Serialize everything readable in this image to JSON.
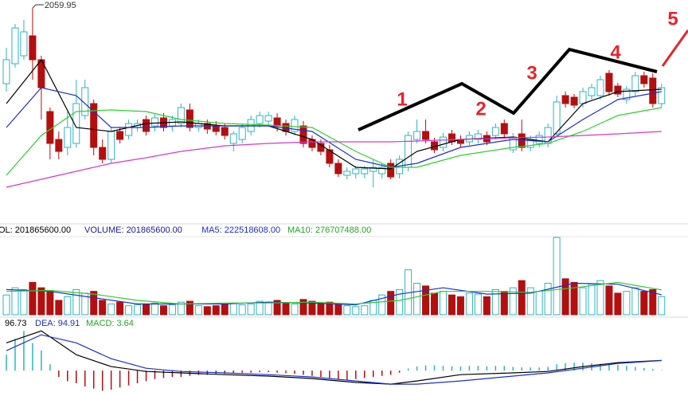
{
  "chart_data": {
    "type": "candlestick",
    "up_color": "#2fb3c4",
    "down_color": "#b40f0f",
    "ylim": [
      1790,
      2070
    ],
    "candles": [
      [
        1965,
        2010,
        1955,
        1995
      ],
      [
        1990,
        2040,
        1985,
        2035
      ],
      [
        2000,
        2045,
        1995,
        2030
      ],
      [
        2025,
        2059.95,
        1970,
        1995
      ],
      [
        1995,
        2000,
        1920,
        1960
      ],
      [
        1930,
        1935,
        1870,
        1890
      ],
      [
        1895,
        1905,
        1870,
        1880
      ],
      [
        1885,
        1930,
        1875,
        1910
      ],
      [
        1890,
        1970,
        1885,
        1940
      ],
      [
        1925,
        1970,
        1920,
        1960
      ],
      [
        1940,
        1945,
        1875,
        1885
      ],
      [
        1885,
        1895,
        1865,
        1870
      ],
      [
        1870,
        1910,
        1865,
        1905
      ],
      [
        1905,
        1910,
        1890,
        1895
      ],
      [
        1900,
        1920,
        1895,
        1915
      ],
      [
        1910,
        1920,
        1905,
        1915
      ],
      [
        1920,
        1925,
        1900,
        1905
      ],
      [
        1912,
        1928,
        1905,
        1922
      ],
      [
        1922,
        1928,
        1905,
        1910
      ],
      [
        1912,
        1925,
        1905,
        1920
      ],
      [
        1915,
        1940,
        1910,
        1935
      ],
      [
        1932,
        1940,
        1905,
        1910
      ],
      [
        1910,
        1920,
        1905,
        1915
      ],
      [
        1915,
        1920,
        1902,
        1908
      ],
      [
        1912,
        1918,
        1900,
        1905
      ],
      [
        1910,
        1915,
        1895,
        1900
      ],
      [
        1890,
        1905,
        1880,
        1902
      ],
      [
        1895,
        1915,
        1890,
        1910
      ],
      [
        1905,
        1925,
        1900,
        1920
      ],
      [
        1915,
        1930,
        1910,
        1925
      ],
      [
        1918,
        1930,
        1912,
        1925
      ],
      [
        1922,
        1928,
        1905,
        1912
      ],
      [
        1915,
        1920,
        1900,
        1905
      ],
      [
        1905,
        1925,
        1900,
        1920
      ],
      [
        1912,
        1918,
        1885,
        1890
      ],
      [
        1895,
        1900,
        1880,
        1885
      ],
      [
        1890,
        1895,
        1875,
        1880
      ],
      [
        1882,
        1888,
        1860,
        1865
      ],
      [
        1865,
        1870,
        1848,
        1852
      ],
      [
        1850,
        1860,
        1845,
        1855
      ],
      [
        1852,
        1862,
        1846,
        1858
      ],
      [
        1852,
        1862,
        1846,
        1858
      ],
      [
        1855,
        1870,
        1835,
        1860
      ],
      [
        1852,
        1865,
        1846,
        1860
      ],
      [
        1865,
        1870,
        1845,
        1848
      ],
      [
        1852,
        1875,
        1846,
        1870
      ],
      [
        1860,
        1905,
        1855,
        1900
      ],
      [
        1895,
        1920,
        1890,
        1905
      ],
      [
        1905,
        1920,
        1890,
        1895
      ],
      [
        1892,
        1897,
        1878,
        1882
      ],
      [
        1885,
        1903,
        1880,
        1898
      ],
      [
        1902,
        1907,
        1888,
        1892
      ],
      [
        1895,
        1900,
        1885,
        1890
      ],
      [
        1892,
        1905,
        1888,
        1900
      ],
      [
        1895,
        1907,
        1890,
        1902
      ],
      [
        1900,
        1905,
        1888,
        1892
      ],
      [
        1900,
        1915,
        1895,
        1910
      ],
      [
        1915,
        1920,
        1898,
        1902
      ],
      [
        1882,
        1903,
        1878,
        1898
      ],
      [
        1902,
        1920,
        1880,
        1885
      ],
      [
        1885,
        1900,
        1880,
        1895
      ],
      [
        1890,
        1905,
        1885,
        1900
      ],
      [
        1890,
        1915,
        1885,
        1910
      ],
      [
        1902,
        1950,
        1898,
        1942
      ],
      [
        1950,
        1955,
        1935,
        1940
      ],
      [
        1948,
        1952,
        1934,
        1938
      ],
      [
        1940,
        1960,
        1935,
        1955
      ],
      [
        1950,
        1965,
        1945,
        1960
      ],
      [
        1950,
        1975,
        1945,
        1970
      ],
      [
        1978,
        1982,
        1950,
        1955
      ],
      [
        1962,
        1966,
        1948,
        1952
      ],
      [
        1945,
        1962,
        1940,
        1958
      ],
      [
        1955,
        1980,
        1950,
        1975
      ],
      [
        1975,
        1980,
        1960,
        1965
      ],
      [
        1972,
        1978,
        1935,
        1940
      ],
      [
        1940,
        1965,
        1935,
        1960
      ]
    ],
    "series": [
      {
        "color": "#000000",
        "x": [
          0,
          4,
          8,
          12,
          16,
          20,
          25,
          30,
          35,
          40,
          44,
          47,
          52,
          58,
          62,
          66,
          70,
          75
        ],
        "values": [
          1940,
          1995,
          1910,
          1905,
          1915,
          1917,
          1912,
          1912,
          1895,
          1860,
          1858,
          1880,
          1895,
          1898,
          1892,
          1940,
          1955,
          1958
        ]
      },
      {
        "color": "#1a2fd0",
        "x": [
          0,
          4,
          8,
          12,
          16,
          20,
          25,
          30,
          35,
          40,
          44,
          47,
          52,
          58,
          62,
          66,
          70,
          75
        ],
        "values": [
          1910,
          1960,
          1950,
          1910,
          1910,
          1912,
          1912,
          1912,
          1905,
          1870,
          1860,
          1865,
          1885,
          1895,
          1892,
          1920,
          1945,
          1955
        ]
      },
      {
        "color": "#2fcf2f",
        "x": [
          0,
          4,
          8,
          12,
          16,
          20,
          25,
          30,
          35,
          40,
          44,
          47,
          52,
          58,
          62,
          66,
          70,
          75
        ],
        "values": [
          1850,
          1900,
          1930,
          1932,
          1930,
          1920,
          1915,
          1913,
          1910,
          1880,
          1860,
          1860,
          1875,
          1885,
          1890,
          1905,
          1925,
          1935
        ]
      },
      {
        "color": "#d23ad2",
        "x": [
          0,
          4,
          8,
          12,
          16,
          20,
          25,
          30,
          35,
          40,
          44,
          47,
          52,
          58,
          62,
          66,
          70,
          75
        ],
        "values": [
          1835,
          1845,
          1855,
          1865,
          1872,
          1880,
          1887,
          1890,
          1892,
          1892,
          1892,
          1893,
          1895,
          1897,
          1898,
          1900,
          1902,
          1905
        ]
      }
    ],
    "volume": {
      "ylim": [
        0,
        860000000
      ],
      "values": [
        220000000.0,
        300000000.0,
        280000000.0,
        360000000.0,
        300000000.0,
        260000000.0,
        160000000.0,
        200000000.0,
        280000000.0,
        240000000.0,
        260000000.0,
        160000000.0,
        120000000.0,
        140000000.0,
        100000000.0,
        110000000.0,
        120000000.0,
        130000000.0,
        100000000.0,
        110000000.0,
        140000000.0,
        150000000.0,
        100000000.0,
        90000000.0,
        100000000.0,
        120000000.0,
        130000000.0,
        110000000.0,
        120000000.0,
        150000000.0,
        140000000.0,
        160000000.0,
        130000000.0,
        120000000.0,
        170000000.0,
        150000000.0,
        130000000.0,
        140000000.0,
        120000000.0,
        100000000.0,
        90000000.0,
        100000000.0,
        160000000.0,
        220000000.0,
        260000000.0,
        280000000.0,
        500000000.0,
        350000000.0,
        320000000.0,
        240000000.0,
        260000000.0,
        220000000.0,
        200000000.0,
        240000000.0,
        230000000.0,
        200000000.0,
        280000000.0,
        260000000.0,
        300000000.0,
        380000000.0,
        300000000.0,
        260000000.0,
        350000000.0,
        860000000.0,
        400000000.0,
        360000000.0,
        300000000.0,
        340000000.0,
        380000000.0,
        320000000.0,
        240000000.0,
        260000000.0,
        300000000.0,
        260000000.0,
        280000000.0,
        201865600
      ],
      "series": [
        {
          "color": "#1a2fd0",
          "x": [
            0,
            5,
            10,
            15,
            20,
            25,
            30,
            35,
            40,
            45,
            50,
            55,
            60,
            65,
            70,
            75
          ],
          "values": [
            280000000.0,
            260000000.0,
            190000000.0,
            120000000.0,
            120000000.0,
            120000000.0,
            140000000.0,
            130000000.0,
            110000000.0,
            230000000.0,
            300000000.0,
            230000000.0,
            240000000.0,
            350000000.0,
            340000000.0,
            222518608
          ]
        },
        {
          "color": "#2fcf2f",
          "x": [
            0,
            5,
            10,
            15,
            20,
            25,
            30,
            35,
            40,
            45,
            50,
            55,
            60,
            65,
            70,
            75
          ],
          "values": [
            260000000.0,
            270000000.0,
            230000000.0,
            160000000.0,
            120000000.0,
            130000000.0,
            130000000.0,
            140000000.0,
            120000000.0,
            160000000.0,
            260000000.0,
            260000000.0,
            250000000.0,
            300000000.0,
            360000000.0,
            276707488
          ]
        }
      ],
      "legend": [
        {
          "text": "OL: 201865600.00",
          "color": "#000000"
        },
        {
          "text": "VOLUME: 201865600.00",
          "color": "#1a1a9a"
        },
        {
          "text": "MA5: 222518608.00",
          "color": "#1a2fd0"
        },
        {
          "text": "MA10: 276707488.00",
          "color": "#22a822"
        }
      ]
    },
    "macd": {
      "ylim": [
        -240,
        490
      ],
      "values": [
        150,
        300,
        375,
        260,
        190,
        60,
        -60,
        -100,
        -120,
        -150,
        -170,
        -190,
        -180,
        -160,
        -140,
        -120,
        -100,
        -80,
        -70,
        -60,
        -60,
        -50,
        -40,
        -40,
        -30,
        -30,
        -25,
        -20,
        -20,
        -15,
        -15,
        -20,
        -25,
        -30,
        -40,
        -50,
        -60,
        -70,
        -80,
        -85,
        -80,
        -70,
        -60,
        -50,
        -40,
        -20,
        20,
        40,
        50,
        50,
        45,
        40,
        40,
        45,
        45,
        40,
        45,
        45,
        35,
        30,
        30,
        30,
        35,
        60,
        70,
        75,
        75,
        70,
        65,
        60,
        55,
        45,
        35,
        25,
        15,
        3.64
      ],
      "series": [
        {
          "color": "#000000",
          "x": [
            0,
            4,
            8,
            12,
            16,
            20,
            25,
            30,
            35,
            40,
            44,
            47,
            52,
            58,
            62,
            66,
            70,
            75
          ],
          "values": [
            262,
            375,
            150,
            38,
            -8,
            -22,
            -38,
            -52,
            -75,
            -112,
            -128,
            -98,
            -38,
            -22,
            -8,
            38,
            75,
            96.73
          ]
        },
        {
          "color": "#1a2fd0",
          "x": [
            0,
            4,
            8,
            12,
            16,
            20,
            25,
            30,
            35,
            40,
            44,
            47,
            52,
            58,
            62,
            66,
            70,
            75
          ],
          "values": [
            188,
            338,
            262,
            112,
            22,
            -8,
            -22,
            -38,
            -60,
            -98,
            -128,
            -128,
            -98,
            -52,
            -22,
            22,
            68,
            94.91
          ]
        }
      ],
      "legend": [
        {
          "text": "96.73",
          "color": "#000000"
        },
        {
          "text": "DEA: 94.91",
          "color": "#1a2fd0"
        },
        {
          "text": "MACD: 3.64",
          "color": "#22a822"
        }
      ]
    },
    "annotations": [
      "1",
      "2",
      "3",
      "4",
      "5"
    ]
  }
}
